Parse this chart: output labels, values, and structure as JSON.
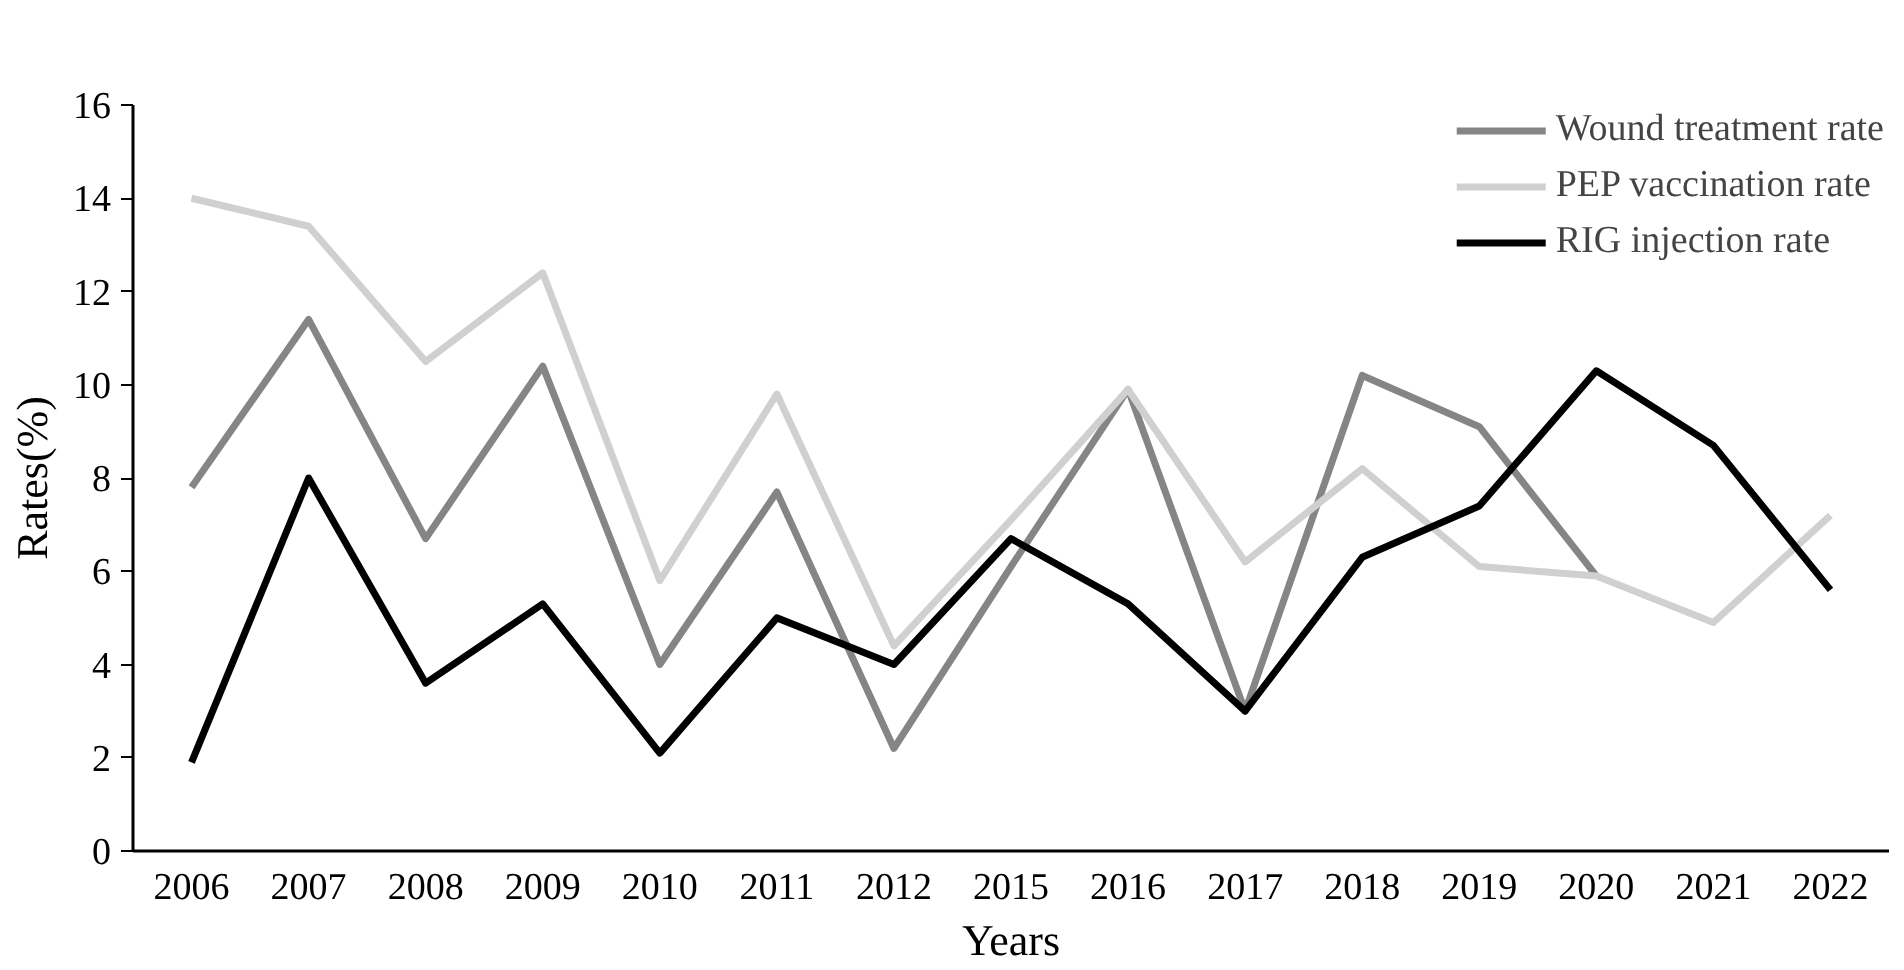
{
  "chart_data": {
    "type": "line",
    "xlabel": "Years",
    "ylabel": "Rates(%)",
    "categories": [
      "2006",
      "2007",
      "2008",
      "2009",
      "2010",
      "2011",
      "2012",
      "2015",
      "2016",
      "2017",
      "2018",
      "2019",
      "2020",
      "2021",
      "2022"
    ],
    "series": [
      {
        "name": "Wound treatment rate",
        "color": "#858585",
        "values": [
          7.8,
          11.4,
          6.7,
          10.4,
          4.0,
          7.7,
          2.2,
          6.1,
          9.9,
          3.0,
          10.2,
          9.1,
          5.9,
          null,
          null
        ]
      },
      {
        "name": "PEP vaccination rate",
        "color": "#d0d0d0",
        "values": [
          14.0,
          13.4,
          10.5,
          12.4,
          5.8,
          9.8,
          4.4,
          7.1,
          9.9,
          6.2,
          8.2,
          6.1,
          5.9,
          4.9,
          7.2
        ]
      },
      {
        "name": "RIG injection rate",
        "color": "#000000",
        "values": [
          1.9,
          8.0,
          3.6,
          5.3,
          2.1,
          5.0,
          4.0,
          6.7,
          5.3,
          3.0,
          6.3,
          7.4,
          10.3,
          8.7,
          5.6
        ]
      }
    ],
    "ylim": [
      0,
      16
    ],
    "yticks": [
      0,
      2,
      4,
      6,
      8,
      10,
      12,
      14,
      16
    ],
    "grid": false,
    "legend": "top right",
    "marker": "none",
    "line_style": "solid"
  }
}
